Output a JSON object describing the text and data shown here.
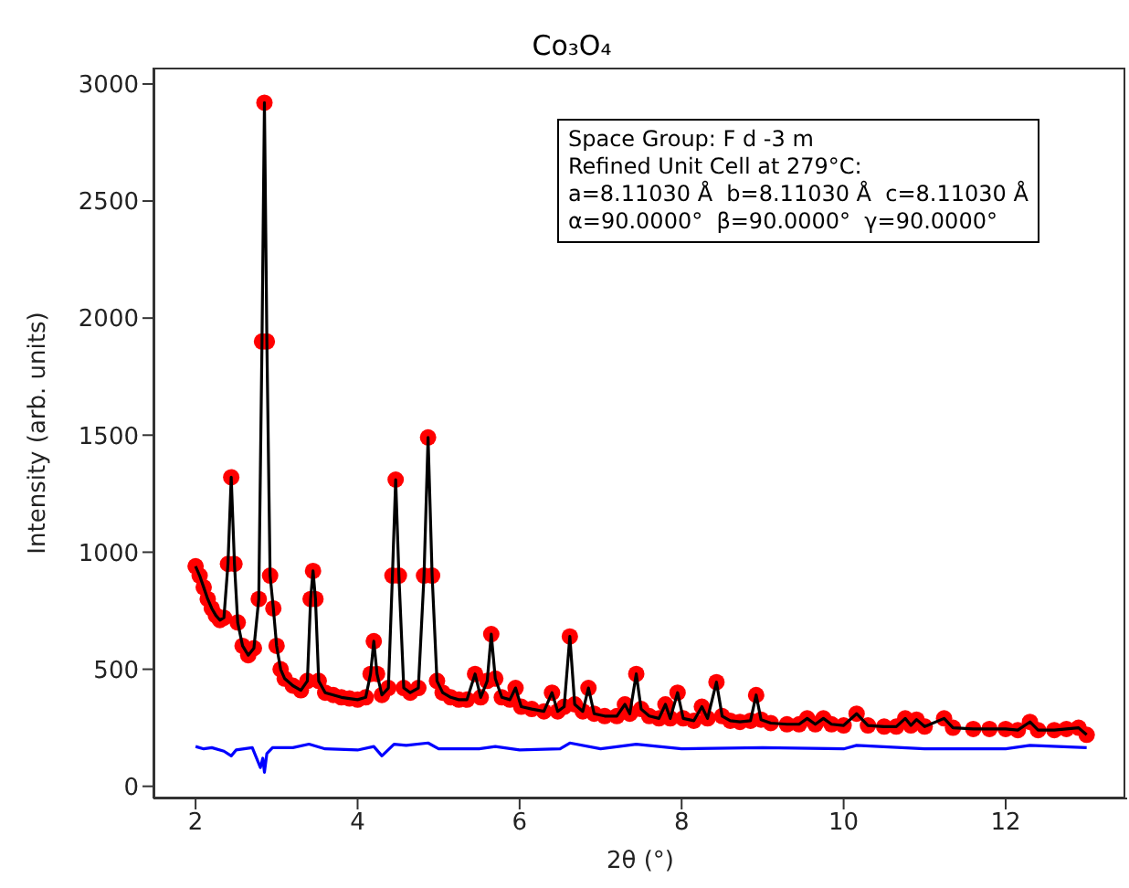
{
  "chart_data": {
    "type": "scatter",
    "title": "Co₃O₄",
    "xlabel": "2θ (°)",
    "ylabel": "Intensity (arb. units)",
    "annotations": [
      "Space Group: F d -3 m\nRefined Unit Cell at 279°C:\na=8.11030 Å  b=8.11030 Å  c=8.11030 Å\nα=90.0000°  β=90.0000°  γ=90.0000°"
    ],
    "xlim": [
      1.48,
      13.5
    ],
    "xticks": [
      2,
      4,
      6,
      8,
      10,
      12
    ],
    "ylim": [
      -52,
      3070
    ],
    "yticks": [
      0,
      500,
      1000,
      1500,
      2000,
      2500,
      3000
    ],
    "x": [
      2.0,
      2.05,
      2.1,
      2.15,
      2.2,
      2.25,
      2.3,
      2.35,
      2.4,
      2.44,
      2.48,
      2.52,
      2.58,
      2.65,
      2.72,
      2.78,
      2.82,
      2.85,
      2.88,
      2.92,
      2.96,
      3.0,
      3.05,
      3.1,
      3.2,
      3.3,
      3.38,
      3.42,
      3.45,
      3.48,
      3.52,
      3.6,
      3.7,
      3.8,
      3.9,
      4.0,
      4.1,
      4.16,
      4.2,
      4.24,
      4.3,
      4.38,
      4.43,
      4.47,
      4.51,
      4.57,
      4.65,
      4.75,
      4.82,
      4.87,
      4.92,
      4.98,
      5.05,
      5.15,
      5.25,
      5.35,
      5.45,
      5.52,
      5.6,
      5.65,
      5.7,
      5.78,
      5.88,
      5.95,
      6.02,
      6.15,
      6.3,
      6.4,
      6.47,
      6.55,
      6.62,
      6.68,
      6.78,
      6.85,
      6.92,
      7.05,
      7.2,
      7.3,
      7.36,
      7.44,
      7.5,
      7.6,
      7.72,
      7.8,
      7.86,
      7.95,
      8.02,
      8.15,
      8.25,
      8.32,
      8.43,
      8.5,
      8.6,
      8.72,
      8.85,
      8.92,
      8.98,
      9.1,
      9.3,
      9.45,
      9.55,
      9.65,
      9.75,
      9.85,
      10.0,
      10.16,
      10.3,
      10.5,
      10.65,
      10.76,
      10.83,
      10.9,
      11.0,
      11.24,
      11.35,
      11.6,
      11.8,
      12.0,
      12.15,
      12.3,
      12.4,
      12.6,
      12.75,
      12.9,
      13.0
    ],
    "series": [
      {
        "marker": "circle",
        "color": "#ff0000",
        "values": [
          940,
          900,
          850,
          800,
          760,
          730,
          710,
          720,
          950,
          1320,
          950,
          700,
          600,
          560,
          590,
          800,
          1900,
          2920,
          1900,
          900,
          760,
          600,
          500,
          460,
          430,
          410,
          450,
          800,
          920,
          800,
          450,
          400,
          390,
          380,
          375,
          370,
          380,
          480,
          620,
          480,
          390,
          420,
          900,
          1310,
          900,
          420,
          400,
          420,
          900,
          1490,
          900,
          450,
          400,
          380,
          370,
          370,
          480,
          380,
          450,
          650,
          460,
          380,
          370,
          420,
          340,
          330,
          320,
          400,
          320,
          340,
          640,
          350,
          320,
          420,
          310,
          300,
          300,
          350,
          310,
          480,
          330,
          300,
          290,
          350,
          290,
          400,
          290,
          280,
          340,
          290,
          445,
          300,
          280,
          275,
          280,
          390,
          285,
          270,
          265,
          265,
          290,
          265,
          290,
          265,
          260,
          310,
          260,
          255,
          255,
          290,
          260,
          285,
          255,
          290,
          250,
          245,
          245,
          245,
          240,
          275,
          240,
          240,
          245,
          250,
          220
        ]
      },
      {
        "type": "line",
        "marker": "none",
        "line_style": "solid",
        "color": "#000000",
        "values": [
          940,
          900,
          850,
          800,
          760,
          730,
          710,
          720,
          950,
          1320,
          950,
          700,
          600,
          560,
          590,
          800,
          1900,
          2920,
          1900,
          900,
          760,
          600,
          500,
          460,
          430,
          410,
          450,
          800,
          920,
          800,
          450,
          400,
          390,
          380,
          375,
          370,
          380,
          480,
          620,
          480,
          390,
          420,
          900,
          1310,
          900,
          420,
          400,
          420,
          900,
          1490,
          900,
          450,
          400,
          380,
          370,
          370,
          480,
          380,
          450,
          650,
          460,
          380,
          370,
          420,
          340,
          330,
          320,
          400,
          320,
          340,
          640,
          350,
          320,
          420,
          310,
          300,
          300,
          350,
          310,
          480,
          330,
          300,
          290,
          350,
          290,
          400,
          290,
          280,
          340,
          290,
          445,
          300,
          280,
          275,
          280,
          390,
          285,
          270,
          265,
          265,
          290,
          265,
          290,
          265,
          260,
          310,
          260,
          255,
          255,
          290,
          260,
          285,
          255,
          290,
          250,
          245,
          245,
          245,
          240,
          275,
          240,
          240,
          245,
          250,
          220
        ]
      },
      {
        "type": "line",
        "marker": "none",
        "line_style": "solid",
        "color": "#0000ff",
        "x": [
          2.0,
          2.1,
          2.2,
          2.35,
          2.44,
          2.5,
          2.7,
          2.8,
          2.83,
          2.85,
          2.88,
          2.95,
          3.2,
          3.4,
          3.6,
          4.0,
          4.2,
          4.3,
          4.45,
          4.6,
          4.87,
          5.0,
          5.5,
          5.7,
          6.0,
          6.5,
          6.62,
          7.0,
          7.44,
          8.0,
          9.0,
          10.0,
          10.16,
          11.0,
          12.0,
          12.3,
          13.0
        ],
        "values": [
          170,
          160,
          165,
          150,
          130,
          155,
          165,
          80,
          120,
          60,
          140,
          165,
          165,
          180,
          160,
          155,
          170,
          130,
          180,
          175,
          185,
          160,
          160,
          170,
          155,
          160,
          185,
          160,
          180,
          160,
          165,
          160,
          175,
          160,
          160,
          175,
          165
        ]
      }
    ]
  }
}
